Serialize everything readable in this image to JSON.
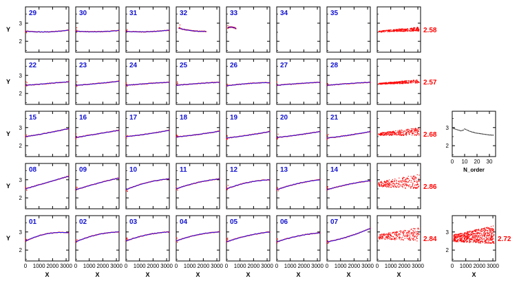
{
  "figure": {
    "y_axis_label": "Y",
    "x_axis_label": "X",
    "xlim": [
      0,
      3200
    ],
    "ylim": [
      1.4,
      3.9
    ],
    "x_tick_labels": [
      "0",
      "1000",
      "2000",
      "3000"
    ],
    "x_tick_values": [
      0,
      1000,
      2000,
      3000
    ],
    "y_tick_labels": [
      "2",
      "3"
    ],
    "y_tick_values": [
      2,
      3
    ],
    "colors": {
      "data": "#ff0000",
      "fit": "#1a1aff",
      "panel_label": "#1010d0",
      "row_value": "#ff0000",
      "frame": "#000000"
    }
  },
  "chart_data": [
    {
      "type": "scatter",
      "grid": false,
      "panels": [
        {
          "label": "29",
          "row": 0,
          "col": 0,
          "xrange": [
            0,
            3200
          ],
          "y_start": 2.56,
          "y_mid": 2.52,
          "y_end": 2.62,
          "has_data": true
        },
        {
          "label": "30",
          "row": 0,
          "col": 1,
          "xrange": [
            0,
            3200
          ],
          "y_start": 2.56,
          "y_mid": 2.53,
          "y_end": 2.6,
          "has_data": true
        },
        {
          "label": "31",
          "row": 0,
          "col": 2,
          "xrange": [
            0,
            3200
          ],
          "y_start": 2.55,
          "y_mid": 2.53,
          "y_end": 2.62,
          "has_data": true
        },
        {
          "label": "32",
          "row": 0,
          "col": 3,
          "xrange": [
            200,
            2200
          ],
          "y_start": 2.72,
          "y_mid": 2.58,
          "y_end": 2.55,
          "has_data": true
        },
        {
          "label": "33",
          "row": 0,
          "col": 4,
          "xrange": [
            100,
            700
          ],
          "y_start": 2.75,
          "y_mid": 2.78,
          "y_end": 2.7,
          "has_data": true
        },
        {
          "label": "34",
          "row": 0,
          "col": 5,
          "has_data": false
        },
        {
          "label": "35",
          "row": 0,
          "col": 6,
          "has_data": false
        },
        {
          "label": "22",
          "row": 1,
          "col": 0,
          "xrange": [
            0,
            3200
          ],
          "y_start": 2.45,
          "y_mid": 2.55,
          "y_end": 2.65,
          "has_data": true
        },
        {
          "label": "23",
          "row": 1,
          "col": 1,
          "xrange": [
            0,
            3200
          ],
          "y_start": 2.45,
          "y_mid": 2.55,
          "y_end": 2.68,
          "has_data": true
        },
        {
          "label": "24",
          "row": 1,
          "col": 2,
          "xrange": [
            0,
            3200
          ],
          "y_start": 2.45,
          "y_mid": 2.55,
          "y_end": 2.62,
          "has_data": true
        },
        {
          "label": "25",
          "row": 1,
          "col": 3,
          "xrange": [
            0,
            3200
          ],
          "y_start": 2.45,
          "y_mid": 2.55,
          "y_end": 2.62,
          "has_data": true
        },
        {
          "label": "26",
          "row": 1,
          "col": 4,
          "xrange": [
            0,
            3200
          ],
          "y_start": 2.42,
          "y_mid": 2.55,
          "y_end": 2.6,
          "has_data": true
        },
        {
          "label": "27",
          "row": 1,
          "col": 5,
          "xrange": [
            0,
            3200
          ],
          "y_start": 2.45,
          "y_mid": 2.55,
          "y_end": 2.62,
          "has_data": true
        },
        {
          "label": "28",
          "row": 1,
          "col": 6,
          "xrange": [
            0,
            3200
          ],
          "y_start": 2.45,
          "y_mid": 2.55,
          "y_end": 2.62,
          "has_data": true
        },
        {
          "label": "15",
          "row": 2,
          "col": 0,
          "xrange": [
            0,
            3200
          ],
          "y_start": 2.5,
          "y_mid": 2.7,
          "y_end": 2.95,
          "has_data": true
        },
        {
          "label": "16",
          "row": 2,
          "col": 1,
          "xrange": [
            0,
            3200
          ],
          "y_start": 2.45,
          "y_mid": 2.65,
          "y_end": 2.85,
          "has_data": true
        },
        {
          "label": "17",
          "row": 2,
          "col": 2,
          "xrange": [
            0,
            3200
          ],
          "y_start": 2.5,
          "y_mid": 2.65,
          "y_end": 2.85,
          "has_data": true
        },
        {
          "label": "18",
          "row": 2,
          "col": 3,
          "xrange": [
            0,
            3200
          ],
          "y_start": 2.48,
          "y_mid": 2.62,
          "y_end": 2.8,
          "has_data": true
        },
        {
          "label": "19",
          "row": 2,
          "col": 4,
          "xrange": [
            0,
            3200
          ],
          "y_start": 2.42,
          "y_mid": 2.58,
          "y_end": 2.78,
          "has_data": true
        },
        {
          "label": "20",
          "row": 2,
          "col": 5,
          "xrange": [
            0,
            3200
          ],
          "y_start": 2.45,
          "y_mid": 2.6,
          "y_end": 2.78,
          "has_data": true
        },
        {
          "label": "21",
          "row": 2,
          "col": 6,
          "xrange": [
            0,
            3200
          ],
          "y_start": 2.42,
          "y_mid": 2.58,
          "y_end": 2.78,
          "has_data": true
        },
        {
          "label": "08",
          "row": 3,
          "col": 0,
          "xrange": [
            0,
            3200
          ],
          "y_start": 2.5,
          "y_mid": 2.85,
          "y_end": 3.2,
          "has_data": true
        },
        {
          "label": "09",
          "row": 3,
          "col": 1,
          "xrange": [
            0,
            3200
          ],
          "y_start": 2.45,
          "y_mid": 2.8,
          "y_end": 3.1,
          "has_data": true
        },
        {
          "label": "10",
          "row": 3,
          "col": 2,
          "xrange": [
            0,
            3200
          ],
          "y_start": 2.45,
          "y_mid": 2.85,
          "y_end": 3.05,
          "has_data": true
        },
        {
          "label": "11",
          "row": 3,
          "col": 3,
          "xrange": [
            0,
            3200
          ],
          "y_start": 2.5,
          "y_mid": 2.85,
          "y_end": 3.05,
          "has_data": true
        },
        {
          "label": "12",
          "row": 3,
          "col": 4,
          "xrange": [
            0,
            3200
          ],
          "y_start": 2.5,
          "y_mid": 2.85,
          "y_end": 3.0,
          "has_data": true
        },
        {
          "label": "13",
          "row": 3,
          "col": 5,
          "xrange": [
            0,
            3200
          ],
          "y_start": 2.45,
          "y_mid": 2.8,
          "y_end": 3.0,
          "has_data": true
        },
        {
          "label": "14",
          "row": 3,
          "col": 6,
          "xrange": [
            0,
            3200
          ],
          "y_start": 2.45,
          "y_mid": 2.75,
          "y_end": 2.95,
          "has_data": true
        },
        {
          "label": "01",
          "row": 4,
          "col": 0,
          "xrange": [
            0,
            3200
          ],
          "y_start": 2.5,
          "y_mid": 2.9,
          "y_end": 2.95,
          "has_data": true
        },
        {
          "label": "02",
          "row": 4,
          "col": 1,
          "xrange": [
            0,
            3200
          ],
          "y_start": 2.45,
          "y_mid": 2.85,
          "y_end": 3.0,
          "has_data": true
        },
        {
          "label": "03",
          "row": 4,
          "col": 2,
          "xrange": [
            0,
            3200
          ],
          "y_start": 2.5,
          "y_mid": 2.85,
          "y_end": 3.0,
          "has_data": true
        },
        {
          "label": "04",
          "row": 4,
          "col": 3,
          "xrange": [
            0,
            3200
          ],
          "y_start": 2.5,
          "y_mid": 2.85,
          "y_end": 3.0,
          "has_data": true
        },
        {
          "label": "05",
          "row": 4,
          "col": 4,
          "xrange": [
            0,
            3200
          ],
          "y_start": 2.45,
          "y_mid": 2.8,
          "y_end": 3.0,
          "has_data": true
        },
        {
          "label": "06",
          "row": 4,
          "col": 5,
          "xrange": [
            0,
            3200
          ],
          "y_start": 2.45,
          "y_mid": 2.78,
          "y_end": 2.95,
          "has_data": true
        },
        {
          "label": "07",
          "row": 4,
          "col": 6,
          "xrange": [
            0,
            3200
          ],
          "y_start": 2.45,
          "y_mid": 2.75,
          "y_end": 3.2,
          "has_data": true
        }
      ],
      "row_summaries": [
        {
          "row": 0,
          "value": "2.58",
          "band_center": 2.58,
          "band_halfwidth": 0.08
        },
        {
          "row": 1,
          "value": "2.57",
          "band_center": 2.58,
          "band_halfwidth": 0.07
        },
        {
          "row": 2,
          "value": "2.68",
          "band_center": 2.68,
          "band_halfwidth": 0.16
        },
        {
          "row": 3,
          "value": "2.86",
          "band_center": 2.8,
          "band_halfwidth": 0.3
        },
        {
          "row": 4,
          "value": "2.84",
          "band_center": 2.78,
          "band_halfwidth": 0.28
        }
      ]
    },
    {
      "type": "line",
      "xlabel": "N_order",
      "xlim": [
        0,
        35
      ],
      "x_tick_labels": [
        "0",
        "10",
        "20",
        "30"
      ],
      "x_tick_values": [
        0,
        10,
        20,
        30
      ],
      "ylim": [
        1.4,
        3.9
      ],
      "y_tick_labels": [
        "2",
        "3"
      ],
      "y_tick_values": [
        2,
        3
      ],
      "x": [
        1,
        2,
        3,
        4,
        5,
        6,
        7,
        8,
        9,
        10,
        11,
        12,
        13,
        14,
        15,
        16,
        17,
        18,
        19,
        20,
        21,
        22,
        23,
        24,
        25,
        26,
        27,
        28,
        29,
        30,
        31,
        32,
        33
      ],
      "values": [
        2.95,
        2.93,
        2.9,
        2.88,
        2.86,
        2.84,
        2.82,
        2.84,
        2.86,
        2.92,
        2.9,
        2.86,
        2.83,
        2.8,
        2.78,
        2.75,
        2.74,
        2.72,
        2.7,
        2.69,
        2.68,
        2.67,
        2.66,
        2.65,
        2.64,
        2.63,
        2.62,
        2.61,
        2.6,
        2.59,
        2.59,
        2.58,
        2.58
      ]
    },
    {
      "type": "scatter",
      "xlabel": "X",
      "xlim": [
        0,
        3200
      ],
      "x_tick_labels": [
        "0",
        "1000",
        "2000",
        "3000"
      ],
      "x_tick_values": [
        0,
        1000,
        2000,
        3000
      ],
      "ylim": [
        1.4,
        3.9
      ],
      "y_tick_labels": [
        "2",
        "3"
      ],
      "y_tick_values": [
        2,
        3
      ],
      "annotation": "2.72",
      "band_center": 2.75,
      "band_halfwidth": 0.35
    }
  ]
}
